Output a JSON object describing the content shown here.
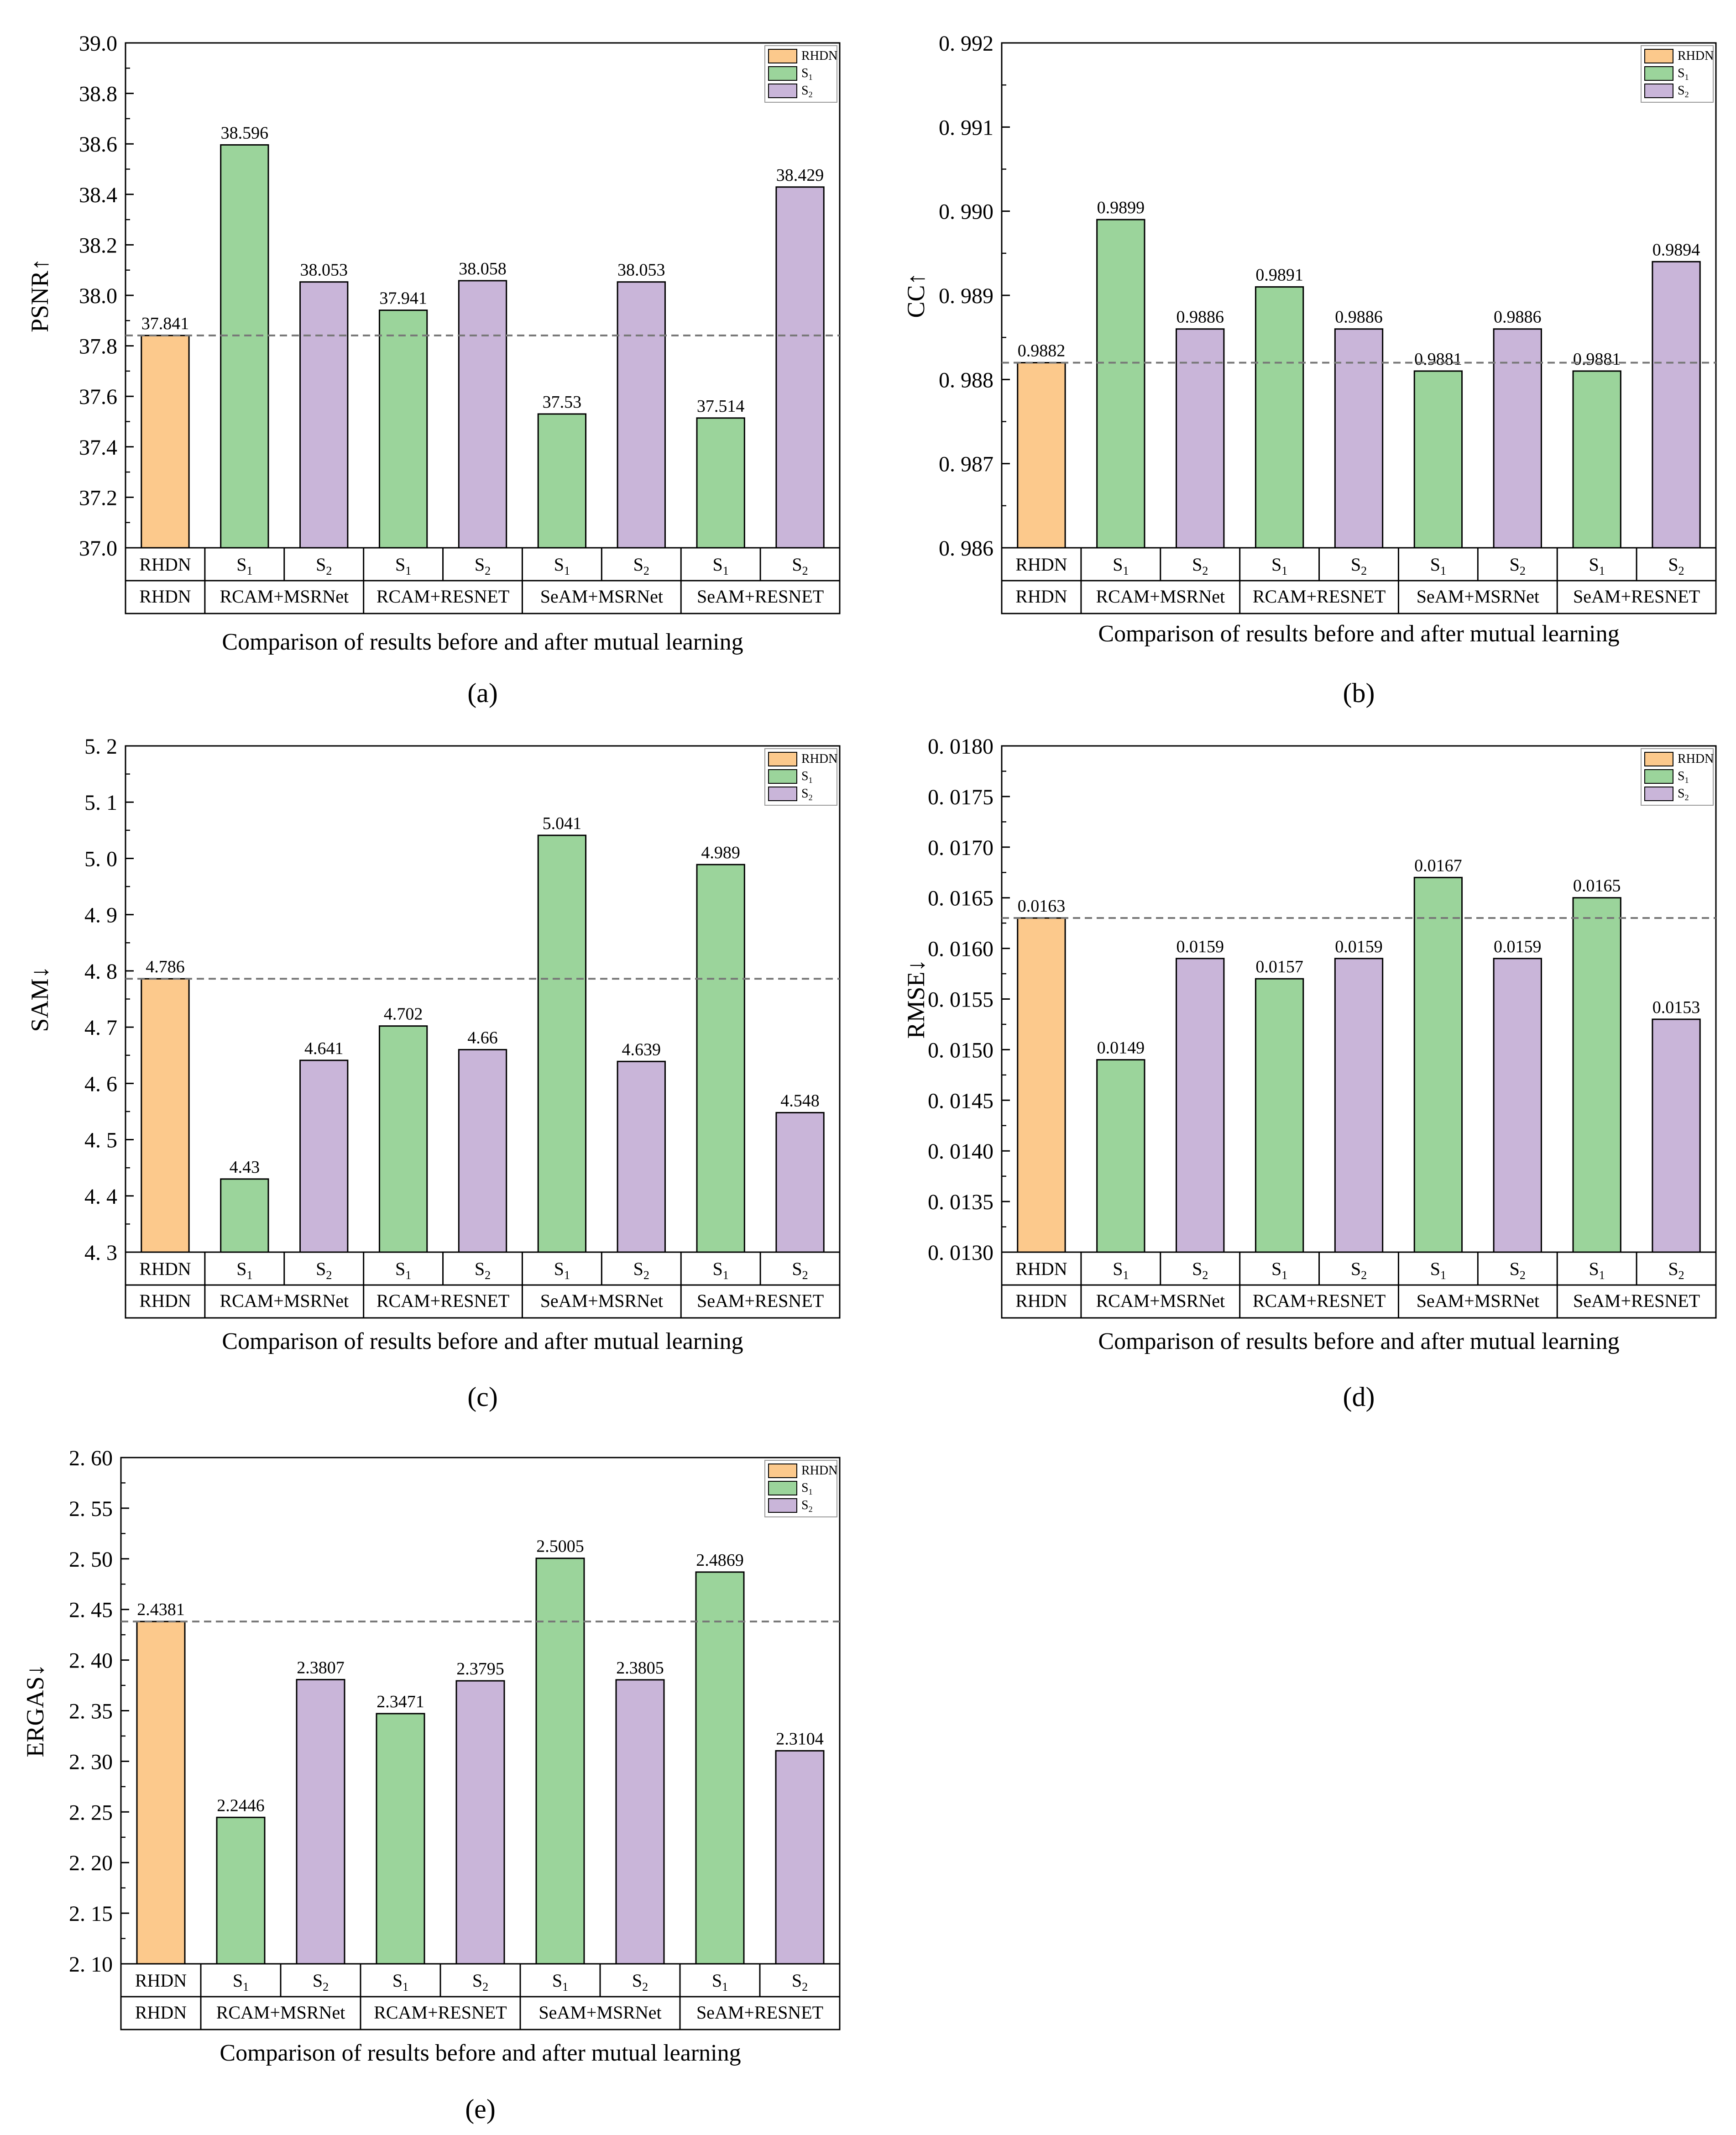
{
  "figure": {
    "legend_entries": [
      {
        "key": "rhdn",
        "label": "RHDN",
        "color": "#FCC98C"
      },
      {
        "key": "s1",
        "label": "S",
        "sub": "1",
        "color": "#9BD49B"
      },
      {
        "key": "s2",
        "label": "S",
        "sub": "2",
        "color": "#C9B5D9"
      }
    ],
    "reference_line_color": "#777777",
    "bar_stroke_color": "#000000"
  },
  "chart_data": [
    {
      "panel": "(a)",
      "type": "bar",
      "ylabel": "PSNR↑",
      "xlabel": "Comparison of results before and after mutual learning",
      "ylim": [
        37.0,
        39.0
      ],
      "yticks": [
        "37.0",
        "37.2",
        "37.4",
        "37.6",
        "37.8",
        "38.0",
        "38.2",
        "38.4",
        "38.6",
        "38.8",
        "39.0"
      ],
      "reference": 37.841,
      "bars": [
        {
          "label": "RHDN",
          "sub": "",
          "series": "rhdn",
          "value": 37.841,
          "text": "37.841"
        },
        {
          "label": "S",
          "sub": "1",
          "series": "s1",
          "value": 38.596,
          "text": "38.596"
        },
        {
          "label": "S",
          "sub": "2",
          "series": "s2",
          "value": 38.053,
          "text": "38.053"
        },
        {
          "label": "S",
          "sub": "1",
          "series": "s1",
          "value": 37.941,
          "text": "37.941"
        },
        {
          "label": "S",
          "sub": "2",
          "series": "s2",
          "value": 38.058,
          "text": "38.058"
        },
        {
          "label": "S",
          "sub": "1",
          "series": "s1",
          "value": 37.53,
          "text": "37.53"
        },
        {
          "label": "S",
          "sub": "2",
          "series": "s2",
          "value": 38.053,
          "text": "38.053"
        },
        {
          "label": "S",
          "sub": "1",
          "series": "s1",
          "value": 37.514,
          "text": "37.514"
        },
        {
          "label": "S",
          "sub": "2",
          "series": "s2",
          "value": 38.429,
          "text": "38.429"
        }
      ],
      "groups": [
        "RHDN",
        "RCAM+MSRNet",
        "RCAM+RESNET",
        "SeAM+MSRNet",
        "SeAM+RESNET"
      ]
    },
    {
      "panel": "(b)",
      "type": "bar",
      "ylabel": "CC↑",
      "xlabel": "Comparison of results before and after mutual learning",
      "ylim": [
        0.986,
        0.992
      ],
      "yticks": [
        "0. 986",
        "0. 987",
        "0. 988",
        "0. 989",
        "0. 990",
        "0. 991",
        "0. 992"
      ],
      "reference": 0.9882,
      "bars": [
        {
          "label": "RHDN",
          "sub": "",
          "series": "rhdn",
          "value": 0.9882,
          "text": "0.9882"
        },
        {
          "label": "S",
          "sub": "1",
          "series": "s1",
          "value": 0.9899,
          "text": "0.9899"
        },
        {
          "label": "S",
          "sub": "2",
          "series": "s2",
          "value": 0.9886,
          "text": "0.9886"
        },
        {
          "label": "S",
          "sub": "1",
          "series": "s1",
          "value": 0.9891,
          "text": "0.9891"
        },
        {
          "label": "S",
          "sub": "2",
          "series": "s2",
          "value": 0.9886,
          "text": "0.9886"
        },
        {
          "label": "S",
          "sub": "1",
          "series": "s1",
          "value": 0.9881,
          "text": "0.9881"
        },
        {
          "label": "S",
          "sub": "2",
          "series": "s2",
          "value": 0.9886,
          "text": "0.9886"
        },
        {
          "label": "S",
          "sub": "1",
          "series": "s1",
          "value": 0.9881,
          "text": "0.9881"
        },
        {
          "label": "S",
          "sub": "2",
          "series": "s2",
          "value": 0.9894,
          "text": "0.9894"
        }
      ],
      "groups": [
        "RHDN",
        "RCAM+MSRNet",
        "RCAM+RESNET",
        "SeAM+MSRNet",
        "SeAM+RESNET"
      ]
    },
    {
      "panel": "(c)",
      "type": "bar",
      "ylabel": "SAM↓",
      "xlabel": "Comparison of results before and after mutual learning",
      "ylim": [
        4.3,
        5.2
      ],
      "yticks": [
        "4. 3",
        "4. 4",
        "4. 5",
        "4. 6",
        "4. 7",
        "4. 8",
        "4. 9",
        "5. 0",
        "5. 1",
        "5. 2"
      ],
      "reference": 4.786,
      "bars": [
        {
          "label": "RHDN",
          "sub": "",
          "series": "rhdn",
          "value": 4.786,
          "text": "4.786"
        },
        {
          "label": "S",
          "sub": "1",
          "series": "s1",
          "value": 4.43,
          "text": "4.43"
        },
        {
          "label": "S",
          "sub": "2",
          "series": "s2",
          "value": 4.641,
          "text": "4.641"
        },
        {
          "label": "S",
          "sub": "1",
          "series": "s1",
          "value": 4.702,
          "text": "4.702"
        },
        {
          "label": "S",
          "sub": "2",
          "series": "s2",
          "value": 4.66,
          "text": "4.66"
        },
        {
          "label": "S",
          "sub": "1",
          "series": "s1",
          "value": 5.041,
          "text": "5.041"
        },
        {
          "label": "S",
          "sub": "2",
          "series": "s2",
          "value": 4.639,
          "text": "4.639"
        },
        {
          "label": "S",
          "sub": "1",
          "series": "s1",
          "value": 4.989,
          "text": "4.989"
        },
        {
          "label": "S",
          "sub": "2",
          "series": "s2",
          "value": 4.548,
          "text": "4.548"
        }
      ],
      "groups": [
        "RHDN",
        "RCAM+MSRNet",
        "RCAM+RESNET",
        "SeAM+MSRNet",
        "SeAM+RESNET"
      ]
    },
    {
      "panel": "(d)",
      "type": "bar",
      "ylabel": "RMSE↓",
      "xlabel": "Comparison of results before and after mutual learning",
      "ylim": [
        0.013,
        0.018
      ],
      "yticks": [
        "0. 0130",
        "0. 0135",
        "0. 0140",
        "0. 0145",
        "0. 0150",
        "0. 0155",
        "0. 0160",
        "0. 0165",
        "0. 0170",
        "0. 0175",
        "0. 0180"
      ],
      "reference": 0.0163,
      "bars": [
        {
          "label": "RHDN",
          "sub": "",
          "series": "rhdn",
          "value": 0.0163,
          "text": "0.0163"
        },
        {
          "label": "S",
          "sub": "1",
          "series": "s1",
          "value": 0.0149,
          "text": "0.0149"
        },
        {
          "label": "S",
          "sub": "2",
          "series": "s2",
          "value": 0.0159,
          "text": "0.0159"
        },
        {
          "label": "S",
          "sub": "1",
          "series": "s1",
          "value": 0.0157,
          "text": "0.0157"
        },
        {
          "label": "S",
          "sub": "2",
          "series": "s2",
          "value": 0.0159,
          "text": "0.0159"
        },
        {
          "label": "S",
          "sub": "1",
          "series": "s1",
          "value": 0.0167,
          "text": "0.0167"
        },
        {
          "label": "S",
          "sub": "2",
          "series": "s2",
          "value": 0.0159,
          "text": "0.0159"
        },
        {
          "label": "S",
          "sub": "1",
          "series": "s1",
          "value": 0.0165,
          "text": "0.0165"
        },
        {
          "label": "S",
          "sub": "2",
          "series": "s2",
          "value": 0.0153,
          "text": "0.0153"
        }
      ],
      "groups": [
        "RHDN",
        "RCAM+MSRNet",
        "RCAM+RESNET",
        "SeAM+MSRNet",
        "SeAM+RESNET"
      ]
    },
    {
      "panel": "(e)",
      "type": "bar",
      "ylabel": "ERGAS↓",
      "xlabel": "Comparison of results before and after mutual learning",
      "ylim": [
        2.1,
        2.6
      ],
      "yticks": [
        "2. 10",
        "2. 15",
        "2. 20",
        "2. 25",
        "2. 30",
        "2. 35",
        "2. 40",
        "2. 45",
        "2. 50",
        "2. 55",
        "2. 60"
      ],
      "reference": 2.4381,
      "bars": [
        {
          "label": "RHDN",
          "sub": "",
          "series": "rhdn",
          "value": 2.4381,
          "text": "2.4381"
        },
        {
          "label": "S",
          "sub": "1",
          "series": "s1",
          "value": 2.2446,
          "text": "2.2446"
        },
        {
          "label": "S",
          "sub": "2",
          "series": "s2",
          "value": 2.3807,
          "text": "2.3807"
        },
        {
          "label": "S",
          "sub": "1",
          "series": "s1",
          "value": 2.3471,
          "text": "2.3471"
        },
        {
          "label": "S",
          "sub": "2",
          "series": "s2",
          "value": 2.3795,
          "text": "2.3795"
        },
        {
          "label": "S",
          "sub": "1",
          "series": "s1",
          "value": 2.5005,
          "text": "2.5005"
        },
        {
          "label": "S",
          "sub": "2",
          "series": "s2",
          "value": 2.3805,
          "text": "2.3805"
        },
        {
          "label": "S",
          "sub": "1",
          "series": "s1",
          "value": 2.4869,
          "text": "2.4869"
        },
        {
          "label": "S",
          "sub": "2",
          "series": "s2",
          "value": 2.3104,
          "text": "2.3104"
        }
      ],
      "groups": [
        "RHDN",
        "RCAM+MSRNet",
        "RCAM+RESNET",
        "SeAM+MSRNet",
        "SeAM+RESNET"
      ]
    }
  ]
}
